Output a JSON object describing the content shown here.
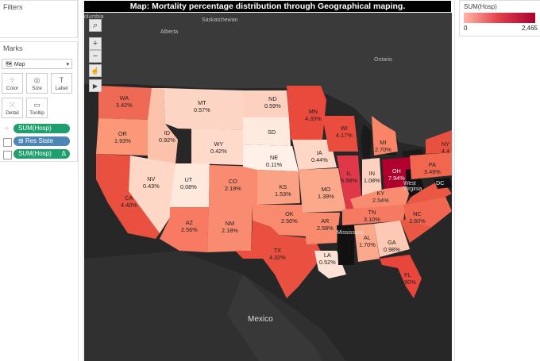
{
  "left": {
    "filters_title": "Filters",
    "marks_title": "Marks",
    "mark_type": "Map",
    "buttons": [
      {
        "label": "Color",
        "icon": "color-dots-icon"
      },
      {
        "label": "Size",
        "icon": "size-icon"
      },
      {
        "label": "Label",
        "icon": "label-icon"
      },
      {
        "label": "Detail",
        "icon": "detail-icon"
      },
      {
        "label": "Tooltip",
        "icon": "tooltip-icon"
      }
    ],
    "fields": [
      {
        "label": "SUM(Hosp)",
        "type": "color"
      },
      {
        "label": "⊞ Res State",
        "type": "detail"
      },
      {
        "label": "SUM(Hosp)",
        "type": "label",
        "badge": "Δ"
      }
    ]
  },
  "map": {
    "title": "Map: Mortality percentage distribution through Geographical maping.",
    "geo_labels": [
      "Alberta",
      "Saskatchewan",
      "Ontario",
      "Mexico",
      "West Virginia",
      "Mississippi",
      "olumbia"
    ],
    "controls": [
      "search-icon",
      "zoom-in-icon",
      "zoom-out-icon",
      "pan-select-icon",
      "play-icon"
    ],
    "states": [
      {
        "code": "WA",
        "pct": "3.42%"
      },
      {
        "code": "OR",
        "pct": "1.93%"
      },
      {
        "code": "CA",
        "pct": "4.40%"
      },
      {
        "code": "ID",
        "pct": "0.92%"
      },
      {
        "code": "NV",
        "pct": "0.43%"
      },
      {
        "code": "UT",
        "pct": "0.08%"
      },
      {
        "code": "AZ",
        "pct": "2.56%"
      },
      {
        "code": "MT",
        "pct": "0.57%"
      },
      {
        "code": "WY",
        "pct": "0.42%"
      },
      {
        "code": "CO",
        "pct": "2.19%"
      },
      {
        "code": "NM",
        "pct": "2.18%"
      },
      {
        "code": "ND",
        "pct": "0.59%"
      },
      {
        "code": "SD",
        "pct": ""
      },
      {
        "code": "NE",
        "pct": "0.11%"
      },
      {
        "code": "KS",
        "pct": "1.53%"
      },
      {
        "code": "OK",
        "pct": "2.50%"
      },
      {
        "code": "TX",
        "pct": "4.32%"
      },
      {
        "code": "MN",
        "pct": "4.33%"
      },
      {
        "code": "IA",
        "pct": "0.44%"
      },
      {
        "code": "MO",
        "pct": "1.39%"
      },
      {
        "code": "AR",
        "pct": "2.58%"
      },
      {
        "code": "LA",
        "pct": "0.52%"
      },
      {
        "code": "WI",
        "pct": "4.17%"
      },
      {
        "code": "IL",
        "pct": "5.58%"
      },
      {
        "code": "MI",
        "pct": "2.70%"
      },
      {
        "code": "IN",
        "pct": "1.08%"
      },
      {
        "code": "OH",
        "pct": "7.94%"
      },
      {
        "code": "KY",
        "pct": "2.54%"
      },
      {
        "code": "TN",
        "pct": "3.10%"
      },
      {
        "code": "AL",
        "pct": "1.70%"
      },
      {
        "code": "GA",
        "pct": "0.98%"
      },
      {
        "code": "FL",
        "pct": "4.90%"
      },
      {
        "code": "NC",
        "pct": "3.80%"
      },
      {
        "code": "PA",
        "pct": "3.49%"
      },
      {
        "code": "NY",
        "pct": "4.4"
      },
      {
        "code": "DC",
        "pct": ""
      }
    ]
  },
  "legend": {
    "title": "SUM(Hosp)",
    "min": "0",
    "max": "2,465",
    "colors": {
      "low": "#ffb6a6",
      "mid": "#e13e47",
      "high": "#aa0030"
    }
  }
}
